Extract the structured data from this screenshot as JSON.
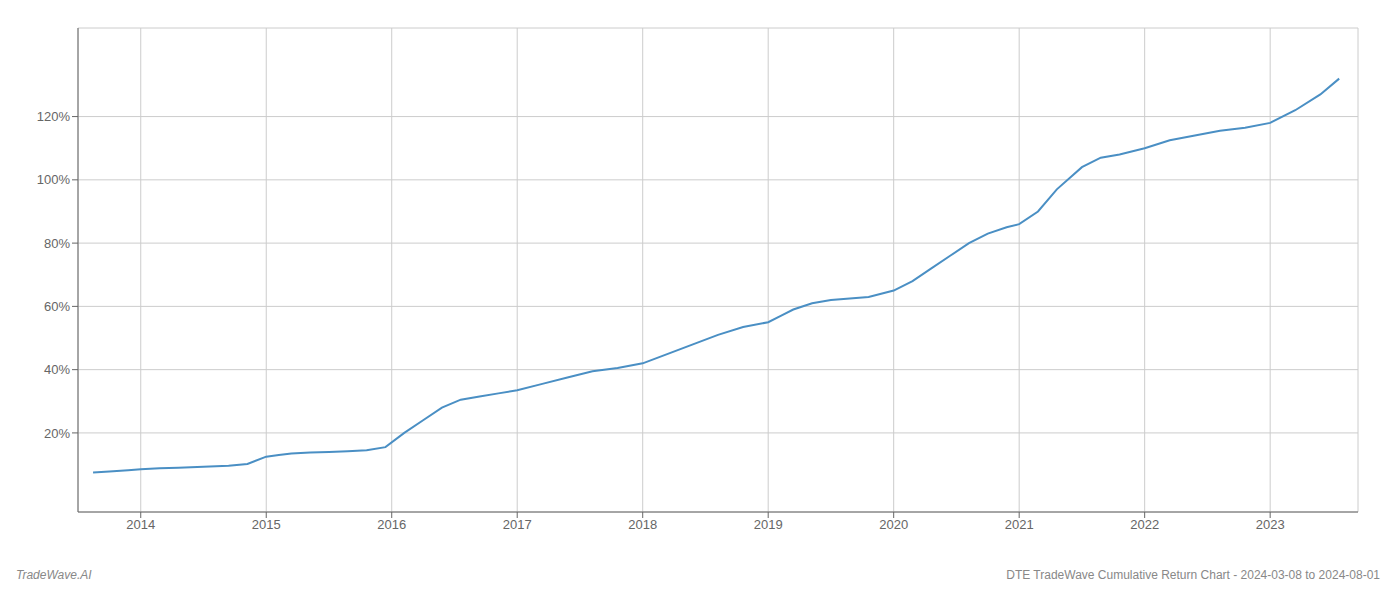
{
  "chart_data": {
    "type": "line",
    "title": "DTE TradeWave Cumulative Return Chart - 2024-03-08 to 2024-08-01",
    "annotations": [
      "TradeWave.AI"
    ],
    "color": "#4a8fc4",
    "grid": true,
    "x": [
      2013.62,
      2013.75,
      2013.9,
      2014.0,
      2014.15,
      2014.3,
      2014.5,
      2014.7,
      2014.85,
      2015.0,
      2015.1,
      2015.2,
      2015.35,
      2015.5,
      2015.65,
      2015.8,
      2015.95,
      2016.1,
      2016.25,
      2016.4,
      2016.55,
      2016.7,
      2016.85,
      2017.0,
      2017.2,
      2017.4,
      2017.6,
      2017.8,
      2018.0,
      2018.2,
      2018.4,
      2018.6,
      2018.8,
      2019.0,
      2019.1,
      2019.2,
      2019.35,
      2019.5,
      2019.65,
      2019.8,
      2020.0,
      2020.15,
      2020.3,
      2020.45,
      2020.6,
      2020.75,
      2020.9,
      2021.0,
      2021.15,
      2021.3,
      2021.5,
      2021.65,
      2021.8,
      2022.0,
      2022.2,
      2022.4,
      2022.6,
      2022.8,
      2023.0,
      2023.2,
      2023.4,
      2023.55
    ],
    "values": [
      7.5,
      7.8,
      8.2,
      8.5,
      8.8,
      9.0,
      9.3,
      9.6,
      10.2,
      12.5,
      13.0,
      13.5,
      13.8,
      14.0,
      14.2,
      14.5,
      15.5,
      20.0,
      24.0,
      28.0,
      30.5,
      31.5,
      32.5,
      33.5,
      35.5,
      37.5,
      39.5,
      40.5,
      42.0,
      45.0,
      48.0,
      51.0,
      53.5,
      55.0,
      57.0,
      59.0,
      61.0,
      62.0,
      62.5,
      63.0,
      65.0,
      68.0,
      72.0,
      76.0,
      80.0,
      83.0,
      85.0,
      86.0,
      90.0,
      97.0,
      104.0,
      107.0,
      108.0,
      110.0,
      112.5,
      114.0,
      115.5,
      116.5,
      118.0,
      122.0,
      127.0,
      132.0
    ],
    "xlim": [
      2013.5,
      2023.7
    ],
    "xticks": [
      2014,
      2015,
      2016,
      2017,
      2018,
      2019,
      2020,
      2021,
      2022,
      2023
    ],
    "ylim": [
      -5,
      148
    ],
    "yticks": [
      {
        "value": 20,
        "label": "20%"
      },
      {
        "value": 40,
        "label": "40%"
      },
      {
        "value": 60,
        "label": "60%"
      },
      {
        "value": 80,
        "label": "80%"
      },
      {
        "value": 100,
        "label": "100%"
      },
      {
        "value": 120,
        "label": "120%"
      }
    ]
  }
}
